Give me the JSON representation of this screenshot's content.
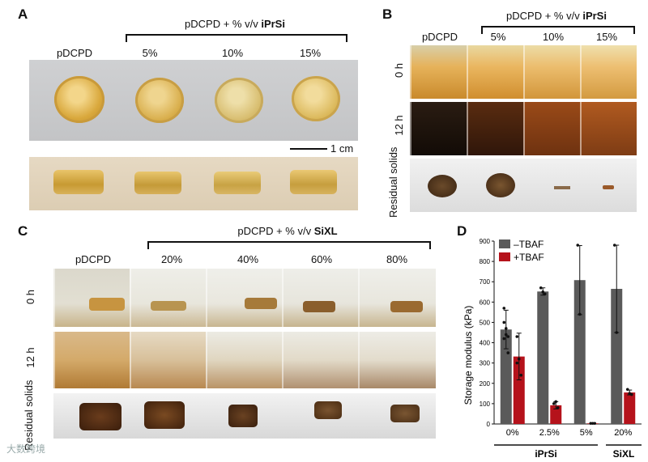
{
  "panel_a": {
    "label": "A",
    "bracket_prefix": "pDCPD + % v/v ",
    "bracket_bold": "iPrSi",
    "columns": [
      "pDCPD",
      "5%",
      "10%",
      "15%"
    ],
    "scale_bar": "1 cm"
  },
  "panel_b": {
    "label": "B",
    "bracket_prefix": "pDCPD + % v/v ",
    "bracket_bold": "iPrSi",
    "columns": [
      "pDCPD",
      "5%",
      "10%",
      "15%"
    ],
    "rows": [
      "0 h",
      "12 h",
      "Residual solids"
    ]
  },
  "panel_c": {
    "label": "C",
    "bracket_prefix": "pDCPD + % v/v ",
    "bracket_bold": "SiXL",
    "columns": [
      "pDCPD",
      "20%",
      "40%",
      "60%",
      "80%"
    ],
    "rows": [
      "0 h",
      "12 h",
      "Residual solids"
    ]
  },
  "panel_d": {
    "label": "D",
    "group_labels": [
      "iPrSi",
      "SiXL"
    ]
  },
  "chart_data": {
    "type": "bar",
    "ylabel": "Storage modulus (kPa)",
    "ylim": [
      0,
      900
    ],
    "yticks": [
      0,
      100,
      200,
      300,
      400,
      500,
      600,
      700,
      800,
      900
    ],
    "categories": [
      "0%",
      "2.5%",
      "5%",
      "20%"
    ],
    "series": [
      {
        "name": "–TBAF",
        "color": "#5a5a5a",
        "values": [
          465,
          652,
          708,
          665
        ],
        "errors": [
          95,
          18,
          170,
          215
        ]
      },
      {
        "name": "+TBAF",
        "color": "#b5121b",
        "values": [
          332,
          92,
          3,
          155
        ],
        "errors": [
          115,
          18,
          2,
          12
        ]
      }
    ],
    "points": [
      [
        [
          570,
          470,
          350,
          500,
          440,
          430,
          420
        ],
        [
          430,
          320,
          240,
          300
        ]
      ],
      [
        [
          670,
          650,
          640
        ],
        [
          100,
          110,
          80
        ]
      ],
      [
        [
          880,
          540
        ],
        [
          3,
          3,
          3
        ]
      ],
      [
        [
          880,
          450
        ],
        [
          170,
          150,
          145
        ]
      ]
    ]
  },
  "watermark": "大数跨境"
}
